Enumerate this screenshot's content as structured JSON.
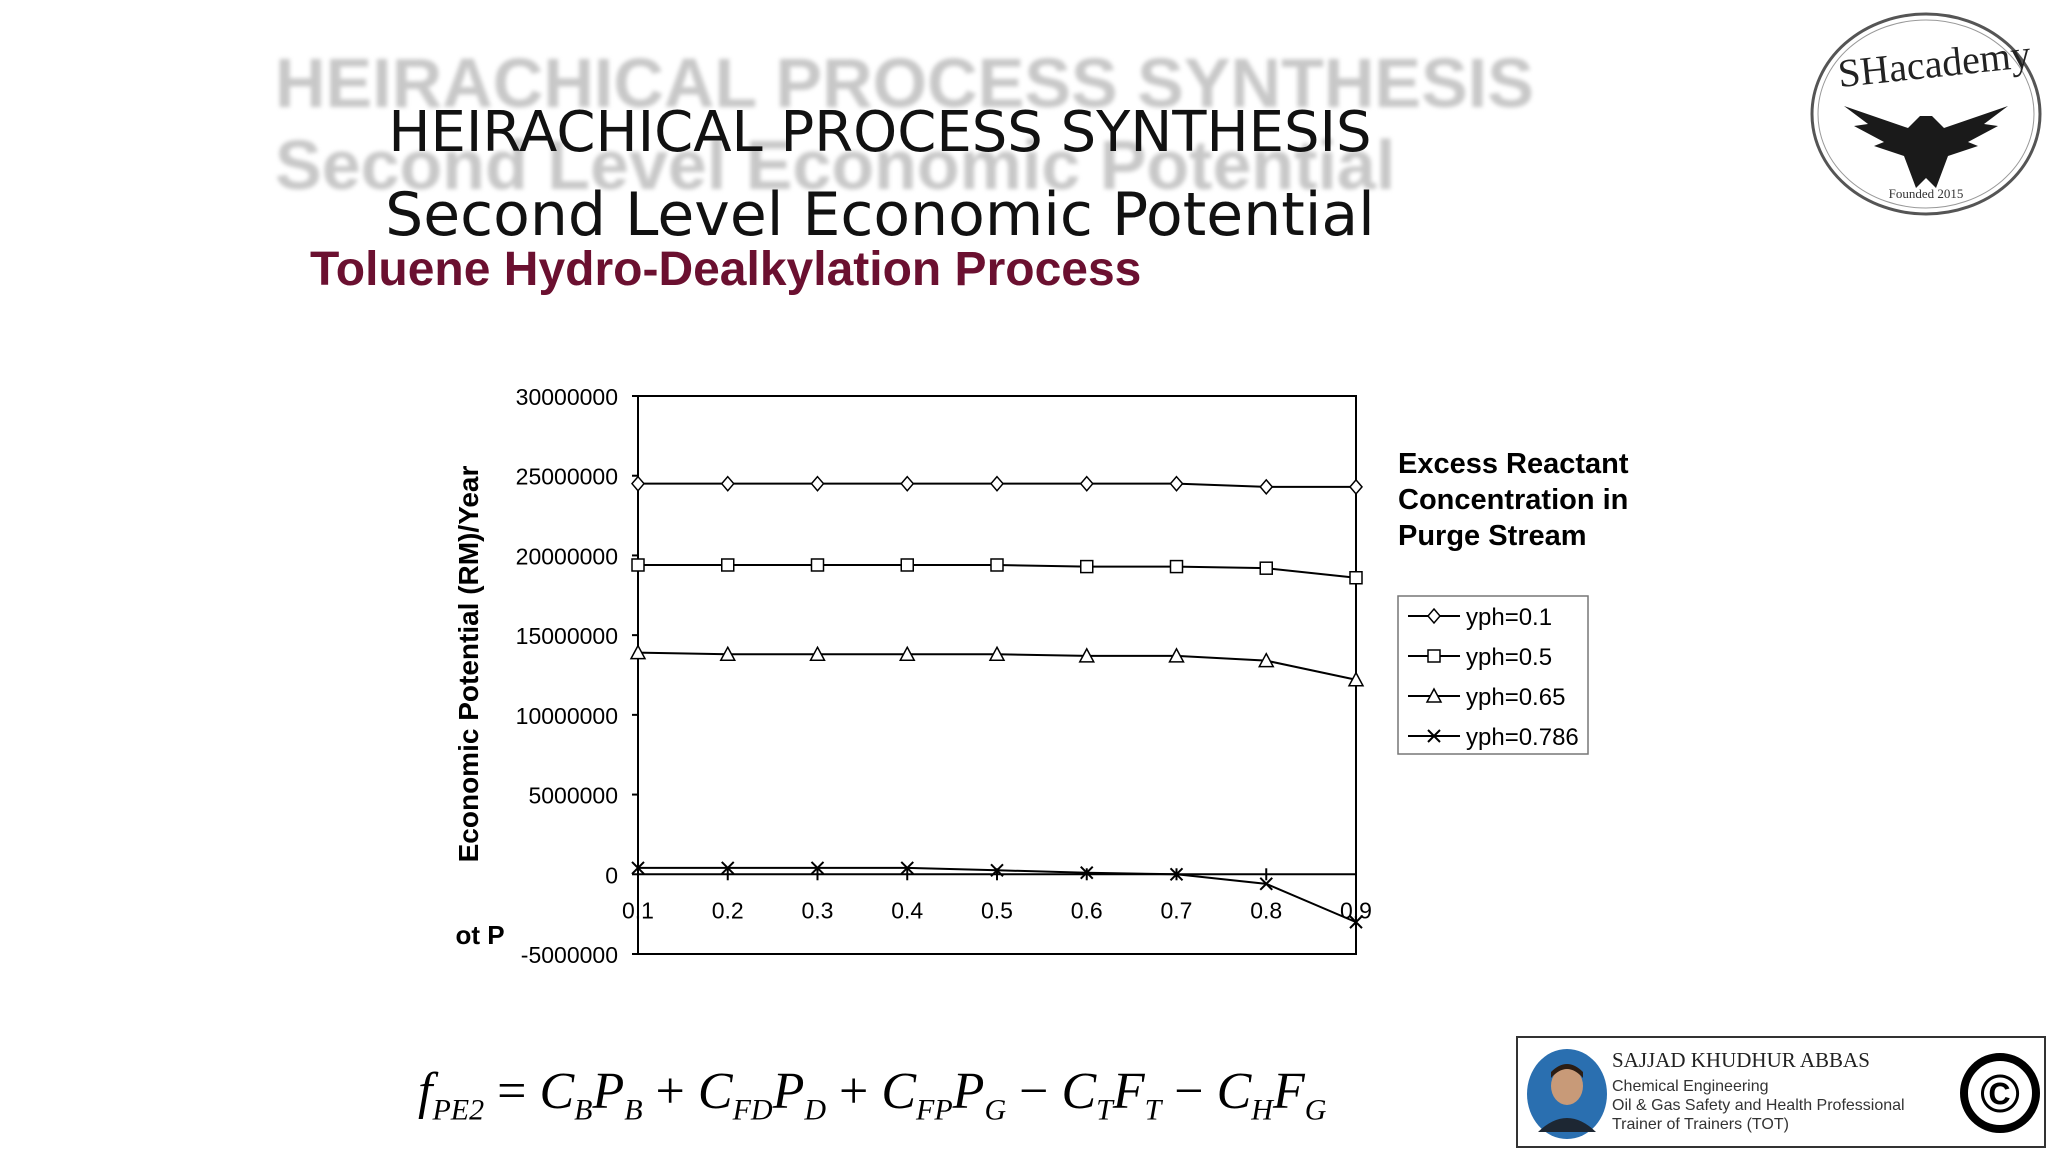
{
  "header": {
    "title_line1": "HEIRACHICAL PROCESS SYNTHESIS",
    "title_line2": "Second Level Economic Potential",
    "ghost_line1": "HEIRACHICAL PROCESS SYNTHESIS",
    "ghost_line2": "Second Level Economic Potential",
    "subtitle": "Toluene Hydro-Dealkylation Process"
  },
  "logo": {
    "text": "SHacademy",
    "founded": "Founded 2015"
  },
  "legend": {
    "title_lines": [
      "Excess Reactant",
      "Concentration in",
      "Purge Stream"
    ]
  },
  "chart_data": {
    "type": "line",
    "title": "",
    "ylabel": "Economic Potential (RM)/Year",
    "ylabel_extra": "ot P",
    "xlabel": "",
    "x": [
      0.1,
      0.2,
      0.3,
      0.4,
      0.5,
      0.6,
      0.7,
      0.8,
      0.9
    ],
    "x_tick_labels": [
      "0.1",
      "0.2",
      "0.3",
      "0.4",
      "0.5",
      "0.6",
      "0.7",
      "0.8",
      "0.9"
    ],
    "y_tick_values": [
      30000000,
      25000000,
      20000000,
      15000000,
      10000000,
      5000000,
      0,
      -5000000
    ],
    "y_tick_labels": [
      "30000000",
      "25000000",
      "20000000",
      "15000000",
      "10000000",
      "5000000",
      "0",
      "-5000000"
    ],
    "ylim": [
      -5000000,
      30000000
    ],
    "xlim": [
      0.1,
      0.9
    ],
    "grid": false,
    "legend_position": "right",
    "series": [
      {
        "name": "yph=0.1",
        "marker": "diamond",
        "values": [
          24500000,
          24500000,
          24500000,
          24500000,
          24500000,
          24500000,
          24500000,
          24300000,
          24300000
        ]
      },
      {
        "name": "yph=0.5",
        "marker": "square",
        "values": [
          19400000,
          19400000,
          19400000,
          19400000,
          19400000,
          19300000,
          19300000,
          19200000,
          18600000
        ]
      },
      {
        "name": "yph=0.65",
        "marker": "triangle",
        "values": [
          13900000,
          13800000,
          13800000,
          13800000,
          13800000,
          13700000,
          13700000,
          13400000,
          12200000
        ]
      },
      {
        "name": "yph=0.786",
        "marker": "x",
        "values": [
          400000,
          400000,
          400000,
          400000,
          250000,
          100000,
          0,
          -600000,
          -3000000
        ]
      }
    ]
  },
  "formula": {
    "f": "f",
    "f_sub": "PE2",
    "eq": "=",
    "terms": [
      {
        "sign": "",
        "c": "C",
        "c_sub": "B",
        "v": "P",
        "v_sub": "B"
      },
      {
        "sign": "+",
        "c": "C",
        "c_sub": "FD",
        "v": "P",
        "v_sub": "D"
      },
      {
        "sign": "+",
        "c": "C",
        "c_sub": "FP",
        "v": "P",
        "v_sub": "G"
      },
      {
        "sign": "−",
        "c": "C",
        "c_sub": "T",
        "v": "F",
        "v_sub": "T"
      },
      {
        "sign": "−",
        "c": "C",
        "c_sub": "H",
        "v": "F",
        "v_sub": "G"
      }
    ]
  },
  "card": {
    "name": "SAJJAD KHUDHUR ABBAS",
    "line1": "Chemical Engineering",
    "line2": "Oil & Gas Safety and Health Professional",
    "line3": "Trainer of Trainers (TOT)",
    "copyright": "©"
  }
}
